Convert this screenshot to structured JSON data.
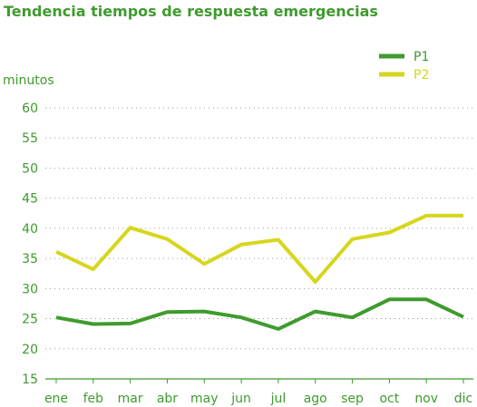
{
  "chart_data": {
    "type": "line",
    "title": "Tendencia tiempos de respuesta emergencias",
    "ylabel": "minutos",
    "xlabel": "",
    "ylim": [
      15,
      60
    ],
    "yticks": [
      15,
      20,
      25,
      30,
      35,
      40,
      45,
      50,
      55,
      60
    ],
    "categories": [
      "ene",
      "feb",
      "mar",
      "abr",
      "may",
      "jun",
      "jul",
      "ago",
      "sep",
      "oct",
      "nov",
      "dic"
    ],
    "series": [
      {
        "name": "P1",
        "color": "#3f9b2e",
        "values": [
          25.2,
          24.1,
          24.2,
          26.1,
          26.2,
          25.2,
          23.3,
          26.2,
          25.2,
          28.2,
          28.2,
          25.3
        ]
      },
      {
        "name": "P2",
        "color": "#d6d61e",
        "values": [
          36.1,
          33.2,
          40.1,
          38.2,
          34.1,
          37.3,
          38.1,
          31.1,
          38.2,
          39.3,
          42.1,
          42.1
        ]
      }
    ],
    "legend_position": "top-right",
    "grid": "horizontal dotted",
    "text_color": "#3f9b2e"
  }
}
